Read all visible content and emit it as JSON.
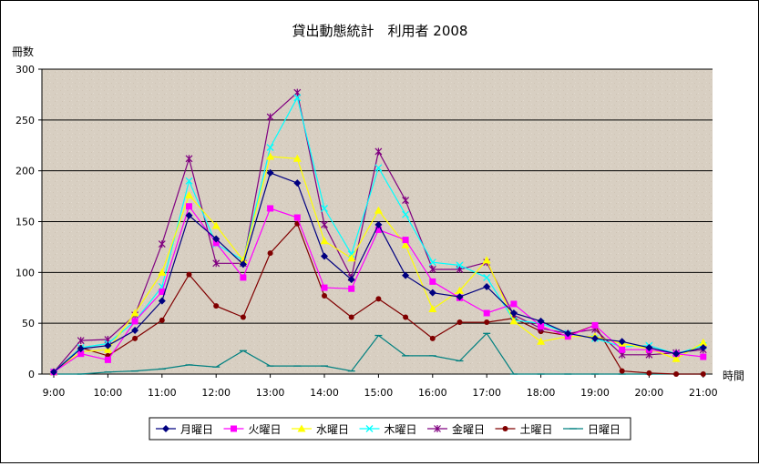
{
  "chart_data": {
    "type": "line",
    "title": "貸出動態統計　利用者 2008",
    "ylabel": "冊数",
    "xlabel": "時間",
    "ylim": [
      0,
      300
    ],
    "y_ticks": [
      0,
      50,
      100,
      150,
      200,
      250,
      300
    ],
    "x_tick_labels": [
      "9:00",
      "10:00",
      "11:00",
      "12:00",
      "13:00",
      "14:00",
      "15:00",
      "16:00",
      "17:00",
      "18:00",
      "19:00",
      "20:00",
      "21:00"
    ],
    "x_hours": [
      9,
      9.5,
      10,
      10.5,
      11,
      11.5,
      12,
      12.5,
      13,
      13.5,
      14,
      14.5,
      15,
      15.5,
      16,
      16.5,
      17,
      17.5,
      18,
      18.5,
      19,
      19.5,
      20,
      20.5,
      21
    ],
    "grid": "horizontal",
    "legend_position": "bottom",
    "series": [
      {
        "name": "月曜日",
        "color": "#000080",
        "marker": "diamond",
        "values": [
          2,
          25,
          28,
          43,
          72,
          156,
          133,
          108,
          198,
          188,
          116,
          93,
          147,
          97,
          80,
          76,
          86,
          60,
          52,
          40,
          35,
          32,
          26,
          20,
          26
        ]
      },
      {
        "name": "火曜日",
        "color": "#ff00ff",
        "marker": "square",
        "values": [
          2,
          20,
          14,
          52,
          81,
          165,
          129,
          95,
          163,
          154,
          85,
          84,
          142,
          132,
          91,
          75,
          60,
          69,
          47,
          37,
          48,
          24,
          24,
          20,
          17
        ]
      },
      {
        "name": "水曜日",
        "color": "#ffff00",
        "marker": "triangle",
        "values": [
          2,
          22,
          24,
          60,
          100,
          176,
          146,
          112,
          214,
          212,
          131,
          114,
          161,
          127,
          64,
          82,
          112,
          52,
          32,
          37,
          37,
          30,
          25,
          15,
          31
        ]
      },
      {
        "name": "木曜日",
        "color": "#00ffff",
        "marker": "x",
        "values": [
          2,
          26,
          30,
          52,
          86,
          190,
          128,
          112,
          223,
          272,
          163,
          118,
          203,
          157,
          110,
          107,
          95,
          53,
          50,
          40,
          35,
          27,
          28,
          20,
          28
        ]
      },
      {
        "name": "金曜日",
        "color": "#800080",
        "marker": "star",
        "values": [
          2,
          33,
          34,
          58,
          128,
          212,
          109,
          109,
          253,
          277,
          147,
          95,
          219,
          171,
          103,
          103,
          110,
          58,
          45,
          40,
          44,
          19,
          19,
          21,
          24
        ]
      },
      {
        "name": "土曜日",
        "color": "#800000",
        "marker": "dot",
        "values": [
          2,
          26,
          18,
          35,
          53,
          98,
          67,
          56,
          119,
          148,
          77,
          56,
          74,
          56,
          35,
          51,
          51,
          55,
          42,
          38,
          48,
          3,
          1,
          0,
          0
        ]
      },
      {
        "name": "日曜日",
        "color": "#008080",
        "marker": "plus",
        "values": [
          0,
          0,
          2,
          3,
          5,
          9,
          7,
          23,
          8,
          8,
          8,
          3,
          38,
          18,
          18,
          13,
          40,
          0,
          0,
          0,
          0,
          0,
          0,
          0,
          0
        ]
      }
    ]
  }
}
